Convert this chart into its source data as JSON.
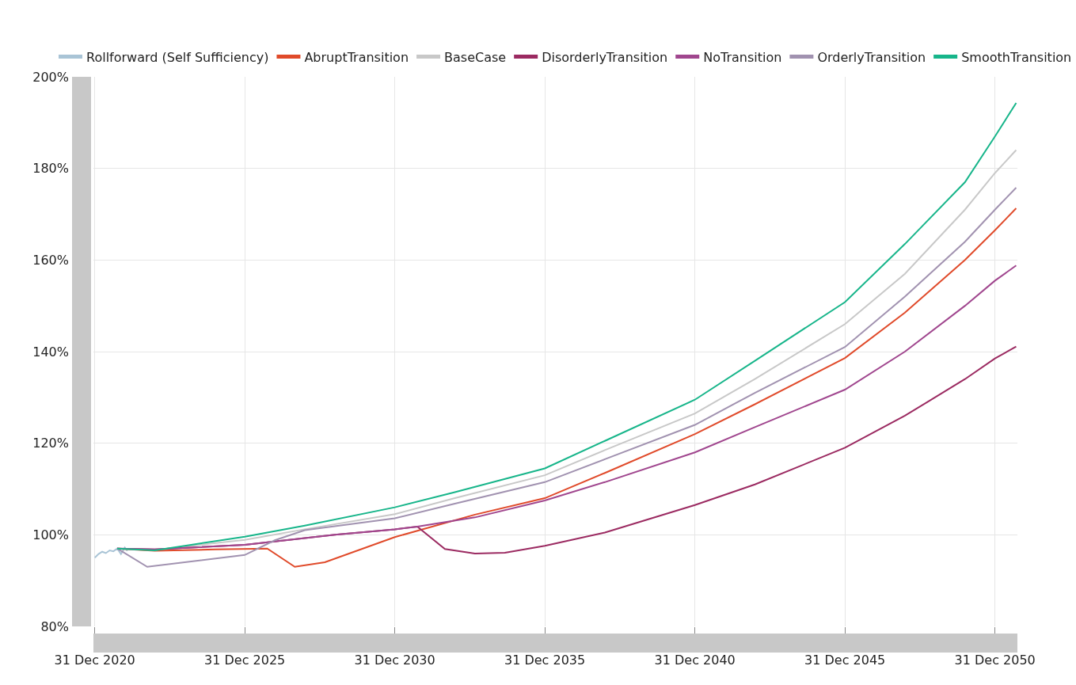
{
  "chart_data": {
    "type": "line",
    "xlim": [
      "2020-12-15",
      "2051-09-30"
    ],
    "xticks": [
      {
        "value": "2020-12-31",
        "label": "31 Dec 2020"
      },
      {
        "value": "2025-12-31",
        "label": "31 Dec 2025"
      },
      {
        "value": "2030-12-31",
        "label": "31 Dec 2030"
      },
      {
        "value": "2035-12-31",
        "label": "31 Dec 2035"
      },
      {
        "value": "2040-12-31",
        "label": "31 Dec 2040"
      },
      {
        "value": "2045-12-31",
        "label": "31 Dec 2045"
      },
      {
        "value": "2050-12-31",
        "label": "31 Dec 2050"
      }
    ],
    "ylim": [
      80,
      200
    ],
    "yticks": [
      {
        "value": 80,
        "label": "80%"
      },
      {
        "value": 100,
        "label": "100%"
      },
      {
        "value": 120,
        "label": "120%"
      },
      {
        "value": 140,
        "label": "140%"
      },
      {
        "value": 160,
        "label": "160%"
      },
      {
        "value": 180,
        "label": "180%"
      },
      {
        "value": 200,
        "label": "200%"
      }
    ],
    "grid": true,
    "legend": "top",
    "marker": "none",
    "line_style": "solid",
    "series": [
      {
        "name": "Rollforward (Self Sufficiency)",
        "color": "#a9c4d6",
        "x": [
          "2021-01-01",
          "2021-02-15",
          "2021-04-01",
          "2021-05-15",
          "2021-07-01",
          "2021-08-15",
          "2021-10-01",
          "2021-11-15",
          "2022-01-01",
          "2022-02-01"
        ],
        "values": [
          95.0,
          95.8,
          96.3,
          96.0,
          96.6,
          96.4,
          97.0,
          95.8,
          97.2,
          96.5
        ]
      },
      {
        "name": "AbruptTransition",
        "color": "#e04a2a",
        "x": [
          "2021-10-01",
          "2022-12-31",
          "2024-12-31",
          "2026-10-01",
          "2027-09-01",
          "2028-09-01",
          "2030-12-31",
          "2033-09-01",
          "2035-12-31",
          "2037-12-31",
          "2040-12-31",
          "2042-12-31",
          "2045-12-31",
          "2047-12-31",
          "2049-12-31",
          "2050-12-31",
          "2051-09-15"
        ],
        "values": [
          97.0,
          96.5,
          96.8,
          97.0,
          93.0,
          94.0,
          99.5,
          104.4,
          108.0,
          113.5,
          122.0,
          128.5,
          138.6,
          148.5,
          160.0,
          166.5,
          171.3
        ]
      },
      {
        "name": "BaseCase",
        "color": "#c8c8c8",
        "x": [
          "2021-10-01",
          "2022-12-31",
          "2025-12-31",
          "2027-12-31",
          "2030-12-31",
          "2032-12-31",
          "2035-12-31",
          "2037-12-31",
          "2040-12-31",
          "2042-12-31",
          "2045-12-31",
          "2047-12-31",
          "2049-12-31",
          "2050-12-31",
          "2051-09-15"
        ],
        "values": [
          97.0,
          96.7,
          98.9,
          101.2,
          104.5,
          108.0,
          113.0,
          118.5,
          126.5,
          134.0,
          146.0,
          157.0,
          171.0,
          179.0,
          184.0
        ]
      },
      {
        "name": "DisorderlyTransition",
        "color": "#9b2a61",
        "x": [
          "2021-10-01",
          "2022-12-31",
          "2025-12-31",
          "2028-12-31",
          "2030-12-31",
          "2031-10-01",
          "2032-09-01",
          "2033-09-01",
          "2034-09-01",
          "2035-12-31",
          "2037-12-31",
          "2040-12-31",
          "2042-12-31",
          "2045-12-31",
          "2047-12-31",
          "2049-12-31",
          "2050-12-31",
          "2051-09-15"
        ],
        "values": [
          97.0,
          96.8,
          97.8,
          100.0,
          101.2,
          101.8,
          96.9,
          95.9,
          96.1,
          97.6,
          100.5,
          106.5,
          111.0,
          119.0,
          126.0,
          134.0,
          138.5,
          141.1
        ]
      },
      {
        "name": "NoTransition",
        "color": "#a0468e",
        "x": [
          "2021-10-01",
          "2022-12-31",
          "2025-12-31",
          "2028-12-31",
          "2030-12-31",
          "2031-10-01",
          "2033-09-01",
          "2035-12-31",
          "2037-12-31",
          "2040-12-31",
          "2042-12-31",
          "2045-12-31",
          "2047-12-31",
          "2049-12-31",
          "2050-12-31",
          "2051-09-15"
        ],
        "values": [
          97.0,
          96.8,
          97.8,
          100.0,
          101.2,
          101.8,
          103.8,
          107.5,
          111.5,
          118.0,
          123.5,
          131.7,
          140.0,
          150.0,
          155.5,
          158.8
        ]
      },
      {
        "name": "OrderlyTransition",
        "color": "#a192b0",
        "x": [
          "2021-10-01",
          "2022-10-01",
          "2025-12-31",
          "2026-12-31",
          "2027-12-31",
          "2030-12-31",
          "2032-12-31",
          "2035-12-31",
          "2037-12-31",
          "2040-12-31",
          "2042-12-31",
          "2045-12-31",
          "2047-12-31",
          "2049-12-31",
          "2050-12-31",
          "2051-09-15"
        ],
        "values": [
          97.0,
          93.0,
          95.6,
          98.8,
          101.0,
          103.6,
          106.8,
          111.5,
          116.5,
          124.0,
          131.0,
          141.0,
          152.0,
          164.0,
          171.0,
          175.8
        ]
      },
      {
        "name": "SmoothTransition",
        "color": "#17b58a",
        "x": [
          "2021-10-01",
          "2022-12-31",
          "2023-12-31",
          "2025-12-31",
          "2027-12-31",
          "2030-12-31",
          "2032-12-31",
          "2035-12-31",
          "2037-12-31",
          "2040-12-31",
          "2042-12-31",
          "2045-12-31",
          "2047-12-31",
          "2049-12-31",
          "2050-12-31",
          "2051-09-15"
        ],
        "values": [
          97.0,
          96.6,
          97.6,
          99.6,
          102.0,
          106.0,
          109.3,
          114.5,
          120.5,
          129.5,
          138.0,
          150.8,
          163.5,
          177.0,
          187.0,
          194.3
        ]
      }
    ]
  }
}
